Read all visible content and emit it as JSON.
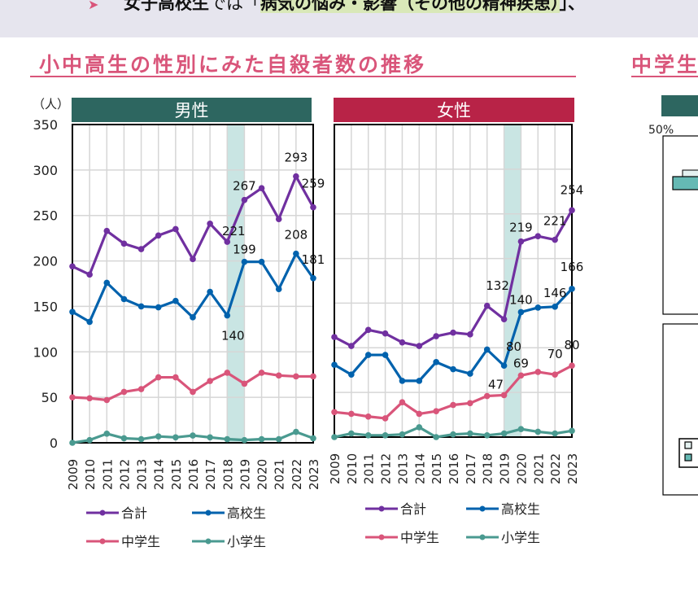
{
  "banner": {
    "prefix": "女子高校生",
    "mid": "では「",
    "highlight": "病気の悩み・影響（その他の精神疾患）",
    "suffix": "」、"
  },
  "section_title": "小中高生の性別にみた自殺者数の推移",
  "right_section": {
    "title": "中学生",
    "tick": "50%"
  },
  "colors": {
    "total": "#7030a0",
    "high": "#0062ad",
    "middle": "#d9557a",
    "elementary": "#4a9a90",
    "male_header": "#2d6660",
    "female_header": "#b82347",
    "band": "#c9e5e3"
  },
  "chart_data": [
    {
      "type": "line",
      "title": "男性",
      "ylabel": "（人）",
      "ylim": [
        0,
        350
      ],
      "yticks": [
        0,
        50,
        100,
        150,
        200,
        250,
        300,
        350
      ],
      "grid": true,
      "highlight_range": [
        "2018",
        "2019"
      ],
      "legend_position": "bottom",
      "categories": [
        "2009",
        "2010",
        "2011",
        "2012",
        "2013",
        "2014",
        "2015",
        "2016",
        "2017",
        "2018",
        "2019",
        "2020",
        "2021",
        "2022",
        "2023"
      ],
      "series": [
        {
          "name": "合計",
          "key": "total",
          "values": [
            194,
            185,
            233,
            219,
            213,
            228,
            235,
            202,
            241,
            221,
            267,
            280,
            246,
            293,
            259
          ]
        },
        {
          "name": "高校生",
          "key": "high",
          "values": [
            144,
            133,
            176,
            158,
            150,
            149,
            156,
            138,
            166,
            140,
            199,
            199,
            169,
            208,
            181
          ]
        },
        {
          "name": "中学生",
          "key": "middle",
          "values": [
            50,
            49,
            47,
            56,
            59,
            72,
            72,
            56,
            68,
            77,
            65,
            77,
            74,
            73,
            73
          ]
        },
        {
          "name": "小学生",
          "key": "elementary",
          "values": [
            0,
            3,
            10,
            5,
            4,
            7,
            6,
            8,
            6,
            4,
            3,
            4,
            4,
            12,
            5
          ]
        }
      ],
      "data_labels": [
        {
          "series": "total",
          "year": "2018",
          "text": "221"
        },
        {
          "series": "total",
          "year": "2019",
          "text": "267"
        },
        {
          "series": "total",
          "year": "2022",
          "text": "293"
        },
        {
          "series": "total",
          "year": "2023",
          "text": "259"
        },
        {
          "series": "high",
          "year": "2018",
          "text": "140"
        },
        {
          "series": "high",
          "year": "2019",
          "text": "199"
        },
        {
          "series": "high",
          "year": "2022",
          "text": "208"
        },
        {
          "series": "high",
          "year": "2023",
          "text": "181"
        }
      ]
    },
    {
      "type": "line",
      "title": "女性",
      "ylim": [
        0,
        350
      ],
      "grid": true,
      "highlight_range": [
        "2019",
        "2020"
      ],
      "legend_position": "bottom",
      "categories": [
        "2009",
        "2010",
        "2011",
        "2012",
        "2013",
        "2014",
        "2015",
        "2016",
        "2017",
        "2018",
        "2019",
        "2020",
        "2021",
        "2022",
        "2023"
      ],
      "series": [
        {
          "name": "合計",
          "key": "total",
          "values": [
            112,
            102,
            120,
            116,
            106,
            102,
            113,
            117,
            115,
            147,
            132,
            219,
            225,
            221,
            254
          ]
        },
        {
          "name": "高校生",
          "key": "high",
          "values": [
            81,
            70,
            92,
            92,
            63,
            63,
            84,
            76,
            71,
            98,
            80,
            140,
            145,
            146,
            166
          ]
        },
        {
          "name": "中学生",
          "key": "middle",
          "values": [
            28,
            26,
            23,
            21,
            39,
            26,
            29,
            36,
            38,
            46,
            47,
            69,
            73,
            70,
            80
          ]
        },
        {
          "name": "小学生",
          "key": "elementary",
          "values": [
            0,
            4,
            2,
            2,
            3,
            11,
            0,
            3,
            4,
            2,
            4,
            9,
            6,
            4,
            7
          ]
        }
      ],
      "data_labels": [
        {
          "series": "total",
          "year": "2019",
          "text": "132"
        },
        {
          "series": "total",
          "year": "2020",
          "text": "219"
        },
        {
          "series": "total",
          "year": "2022",
          "text": "221"
        },
        {
          "series": "total",
          "year": "2023",
          "text": "254"
        },
        {
          "series": "high",
          "year": "2019",
          "text": "80"
        },
        {
          "series": "high",
          "year": "2020",
          "text": "140"
        },
        {
          "series": "high",
          "year": "2022",
          "text": "146"
        },
        {
          "series": "high",
          "year": "2023",
          "text": "166"
        },
        {
          "series": "middle",
          "year": "2019",
          "text": "47"
        },
        {
          "series": "middle",
          "year": "2020",
          "text": "69"
        },
        {
          "series": "middle",
          "year": "2022",
          "text": "70"
        },
        {
          "series": "middle",
          "year": "2023",
          "text": "80"
        }
      ]
    }
  ]
}
